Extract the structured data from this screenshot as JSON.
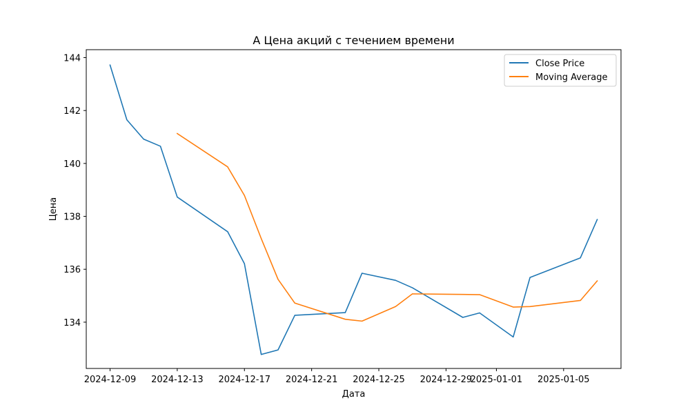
{
  "chart_data": {
    "type": "line",
    "title": "А Цена акций с течением времени",
    "xlabel": "Дата",
    "ylabel": "Цена",
    "x_range": [
      "2024-12-07T14:00",
      "2025-01-08T10:00"
    ],
    "ylim": [
      132.25,
      144.3
    ],
    "x_ticks": [
      {
        "date": "2024-12-09",
        "label": "2024-12-09"
      },
      {
        "date": "2024-12-13",
        "label": "2024-12-13"
      },
      {
        "date": "2024-12-17",
        "label": "2024-12-17"
      },
      {
        "date": "2024-12-21",
        "label": "2024-12-21"
      },
      {
        "date": "2024-12-25",
        "label": "2024-12-25"
      },
      {
        "date": "2024-12-29",
        "label": "2024-12-29"
      },
      {
        "date": "2025-01-01",
        "label": "2025-01-01"
      },
      {
        "date": "2025-01-05",
        "label": "2025-01-05"
      }
    ],
    "y_ticks": [
      134,
      136,
      138,
      140,
      142,
      144
    ],
    "grid": false,
    "legend_position": "top-right",
    "series": [
      {
        "name": "Close Price",
        "color": "#1f77b4",
        "points": [
          {
            "x": "2024-12-09",
            "y": 143.72
          },
          {
            "x": "2024-12-10",
            "y": 141.65
          },
          {
            "x": "2024-12-11",
            "y": 140.92
          },
          {
            "x": "2024-12-12",
            "y": 140.65
          },
          {
            "x": "2024-12-13",
            "y": 138.73
          },
          {
            "x": "2024-12-16",
            "y": 137.42
          },
          {
            "x": "2024-12-17",
            "y": 136.21
          },
          {
            "x": "2024-12-18",
            "y": 132.78
          },
          {
            "x": "2024-12-19",
            "y": 132.95
          },
          {
            "x": "2024-12-20",
            "y": 134.26
          },
          {
            "x": "2024-12-23",
            "y": 134.36
          },
          {
            "x": "2024-12-24",
            "y": 135.85
          },
          {
            "x": "2024-12-26",
            "y": 135.58
          },
          {
            "x": "2024-12-27",
            "y": 135.3
          },
          {
            "x": "2024-12-30",
            "y": 134.18
          },
          {
            "x": "2024-12-31",
            "y": 134.35
          },
          {
            "x": "2025-01-02",
            "y": 133.44
          },
          {
            "x": "2025-01-03",
            "y": 135.69
          },
          {
            "x": "2025-01-06",
            "y": 136.43
          },
          {
            "x": "2025-01-07",
            "y": 137.88
          }
        ]
      },
      {
        "name": "Moving Average",
        "color": "#ff7f0e",
        "points": [
          {
            "x": "2024-12-13",
            "y": 141.13
          },
          {
            "x": "2024-12-16",
            "y": 139.87
          },
          {
            "x": "2024-12-17",
            "y": 138.79
          },
          {
            "x": "2024-12-18",
            "y": 137.16
          },
          {
            "x": "2024-12-19",
            "y": 135.62
          },
          {
            "x": "2024-12-20",
            "y": 134.72
          },
          {
            "x": "2024-12-23",
            "y": 134.11
          },
          {
            "x": "2024-12-24",
            "y": 134.04
          },
          {
            "x": "2024-12-26",
            "y": 134.59
          },
          {
            "x": "2024-12-27",
            "y": 135.07
          },
          {
            "x": "2024-12-30",
            "y": 135.05
          },
          {
            "x": "2024-12-31",
            "y": 135.04
          },
          {
            "x": "2025-01-02",
            "y": 134.57
          },
          {
            "x": "2025-01-03",
            "y": 134.59
          },
          {
            "x": "2025-01-06",
            "y": 134.82
          },
          {
            "x": "2025-01-07",
            "y": 135.56
          }
        ]
      }
    ]
  }
}
